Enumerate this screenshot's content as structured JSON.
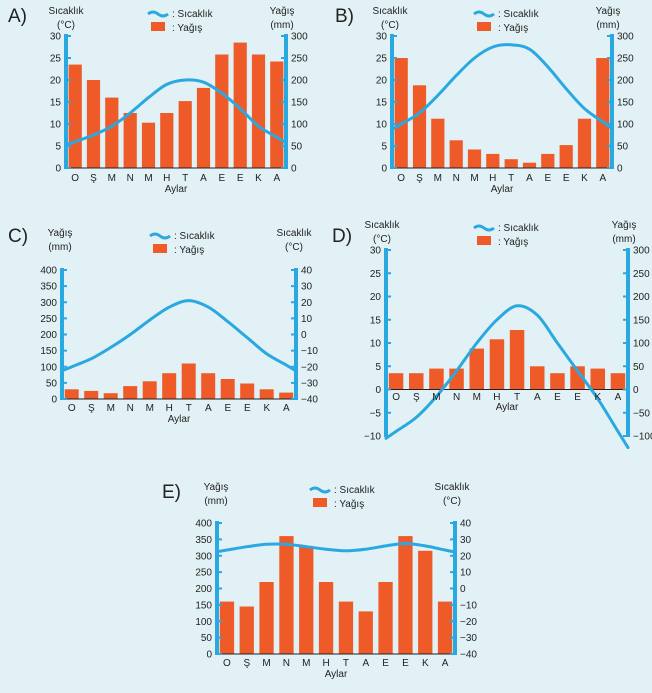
{
  "chart_data": [
    {
      "id": "A",
      "type": "bar+line",
      "letter": "A)",
      "legend": {
        "line_label": ": Sıcaklık",
        "bar_label": ": Yağış"
      },
      "temp_axis_label": [
        "Sıcaklık",
        "(°C)"
      ],
      "rain_axis_label": [
        "Yağış",
        "(mm)"
      ],
      "xlabel": "Aylar",
      "categories": [
        "O",
        "Ş",
        "M",
        "N",
        "M",
        "H",
        "T",
        "A",
        "E",
        "E",
        "K",
        "A"
      ],
      "temp_ticks": [
        0,
        5,
        10,
        15,
        20,
        25,
        30
      ],
      "rain_ticks": [
        0,
        50,
        100,
        150,
        200,
        250,
        300
      ],
      "precipitation": [
        235,
        200,
        160,
        125,
        103,
        125,
        152,
        182,
        258,
        285,
        258,
        242
      ],
      "temperature": [
        6,
        7.5,
        9.5,
        12.5,
        16,
        19,
        20,
        19.5,
        17,
        13.5,
        9.5,
        7
      ]
    },
    {
      "id": "B",
      "type": "bar+line",
      "letter": "B)",
      "legend": {
        "line_label": ": Sıcaklık",
        "bar_label": ": Yağış"
      },
      "temp_axis_label": [
        "Sıcaklık",
        "(°C)"
      ],
      "rain_axis_label": [
        "Yağış",
        "(mm)"
      ],
      "xlabel": "Aylar",
      "categories": [
        "O",
        "Ş",
        "M",
        "N",
        "M",
        "H",
        "T",
        "A",
        "E",
        "E",
        "K",
        "A"
      ],
      "temp_ticks": [
        0,
        5,
        10,
        15,
        20,
        25,
        30
      ],
      "rain_ticks": [
        0,
        50,
        100,
        150,
        200,
        250,
        300
      ],
      "precipitation": [
        250,
        188,
        112,
        63,
        42,
        32,
        20,
        12,
        32,
        52,
        112,
        250
      ],
      "temperature": [
        10,
        12.5,
        16.5,
        21,
        25,
        27.5,
        28,
        27,
        23,
        18,
        13.5,
        10.5
      ]
    },
    {
      "id": "C",
      "type": "bar+line",
      "letter": "C)",
      "legend": {
        "line_label": ": Sıcaklık",
        "bar_label": ": Yağış"
      },
      "temp_axis_label": [
        "Sıcaklık",
        "(°C)"
      ],
      "rain_axis_label": [
        "Yağış",
        "(mm)"
      ],
      "xlabel": "Aylar",
      "categories": [
        "O",
        "Ş",
        "M",
        "N",
        "M",
        "H",
        "T",
        "A",
        "E",
        "E",
        "K",
        "A"
      ],
      "temp_ticks": [
        -40,
        -30,
        -20,
        -10,
        0,
        10,
        20,
        30,
        40
      ],
      "rain_ticks": [
        0,
        50,
        100,
        150,
        200,
        250,
        300,
        350,
        400
      ],
      "precipitation": [
        30,
        25,
        18,
        40,
        55,
        80,
        110,
        80,
        62,
        48,
        30,
        20
      ],
      "temperature": [
        -20,
        -15,
        -8,
        0,
        9,
        17,
        21,
        17,
        8,
        -2,
        -12,
        -19
      ]
    },
    {
      "id": "D",
      "type": "bar+line",
      "letter": "D)",
      "legend": {
        "line_label": ": Sıcaklık",
        "bar_label": ": Yağış"
      },
      "temp_axis_label": [
        "Sıcaklık",
        "(°C)"
      ],
      "rain_axis_label": [
        "Yağış",
        "(mm)"
      ],
      "xlabel": "Aylar",
      "categories": [
        "O",
        "Ş",
        "M",
        "N",
        "M",
        "H",
        "T",
        "A",
        "E",
        "E",
        "K",
        "A"
      ],
      "temp_ticks": [
        -10,
        -5,
        0,
        5,
        10,
        15,
        20,
        25,
        30
      ],
      "rain_ticks": [
        -100,
        -50,
        0,
        50,
        100,
        150,
        200,
        250,
        300
      ],
      "precipitation": [
        35,
        35,
        45,
        45,
        88,
        108,
        128,
        50,
        35,
        50,
        45,
        35
      ],
      "temperature": [
        -9,
        -6,
        -1.5,
        4,
        10,
        15,
        18,
        16,
        10,
        4,
        -2,
        -9
      ]
    },
    {
      "id": "E",
      "type": "bar+line",
      "letter": "E)",
      "legend": {
        "line_label": ": Sıcaklık",
        "bar_label": ": Yağış"
      },
      "temp_axis_label": [
        "Sıcaklık",
        "(°C)"
      ],
      "rain_axis_label": [
        "Yağış",
        "(mm)"
      ],
      "xlabel": "Aylar",
      "categories": [
        "O",
        "Ş",
        "M",
        "N",
        "M",
        "H",
        "T",
        "A",
        "E",
        "E",
        "K",
        "A"
      ],
      "temp_ticks": [
        -40,
        -30,
        -20,
        -10,
        0,
        10,
        20,
        30,
        40
      ],
      "rain_ticks": [
        0,
        50,
        100,
        150,
        200,
        250,
        300,
        350,
        400
      ],
      "precipitation": [
        160,
        145,
        220,
        360,
        330,
        220,
        160,
        130,
        220,
        360,
        315,
        160
      ],
      "temperature": [
        23.5,
        25.5,
        27,
        27,
        25.5,
        24,
        23,
        24,
        26,
        27.5,
        26,
        23.5
      ]
    }
  ]
}
